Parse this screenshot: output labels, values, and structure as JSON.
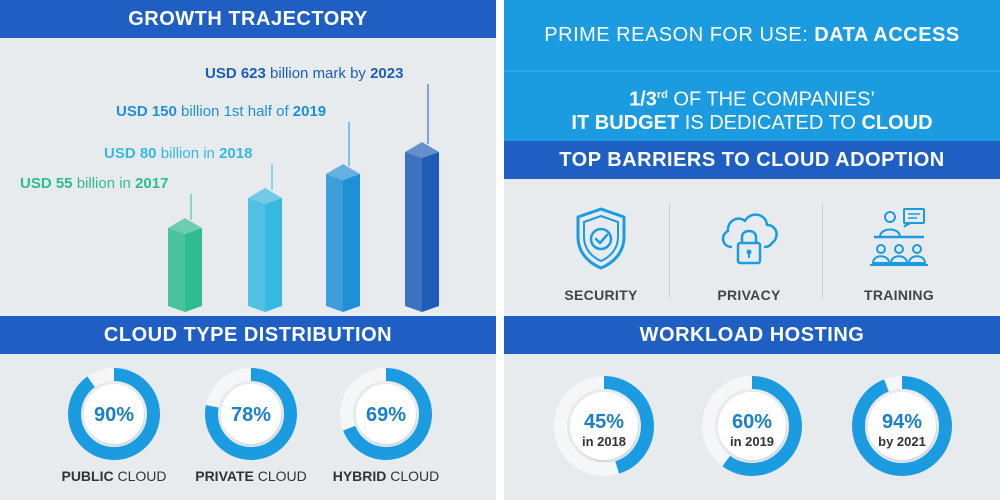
{
  "growth": {
    "title": "GROWTH TRAJECTORY",
    "labels": [
      {
        "pre": "USD 55",
        "mid": " billion in ",
        "post": "2017"
      },
      {
        "pre": "USD 80",
        "mid": " billion in ",
        "post": "2018"
      },
      {
        "pre": "USD 150",
        "mid": " billion 1st half of ",
        "post": "2019"
      },
      {
        "pre": "USD 623",
        "mid": " billion mark by ",
        "post": "2023"
      }
    ],
    "colors": [
      "#2ebd8e",
      "#35b9e0",
      "#1e90d6",
      "#1d5db8"
    ]
  },
  "right_top": {
    "prime_prefix": "PRIME REASON FOR USE: ",
    "prime_bold": "DATA ACCESS",
    "budget_l1_frac": "1/3",
    "budget_l1_sup": "rd",
    "budget_l1_rest": " OF THE COMPANIES’",
    "budget_l2_a": "IT BUDGET",
    "budget_l2_b": " IS DEDICATED TO ",
    "budget_l2_c": "CLOUD"
  },
  "barriers": {
    "title": "TOP BARRIERS TO CLOUD ADOPTION",
    "items": [
      {
        "label": "SECURITY",
        "icon": "shield-check-icon"
      },
      {
        "label": "PRIVACY",
        "icon": "cloud-lock-icon"
      },
      {
        "label": "TRAINING",
        "icon": "classroom-icon"
      }
    ]
  },
  "distribution": {
    "title": "CLOUD TYPE DISTRIBUTION",
    "items": [
      {
        "value": 90,
        "text": "90%",
        "label_bold": "PUBLIC",
        "label_rest": " CLOUD"
      },
      {
        "value": 78,
        "text": "78%",
        "label_bold": "PRIVATE",
        "label_rest": " CLOUD"
      },
      {
        "value": 69,
        "text": "69%",
        "label_bold": "HYBRID",
        "label_rest": " CLOUD"
      }
    ]
  },
  "workload": {
    "title": "WORKLOAD HOSTING",
    "items": [
      {
        "value": 45,
        "text": "45%",
        "sub": "in 2018"
      },
      {
        "value": 60,
        "text": "60%",
        "sub": "in 2019"
      },
      {
        "value": 94,
        "text": "94%",
        "sub": "by 2021"
      }
    ]
  },
  "colors": {
    "band_dark": "#1f5fc4",
    "band_light": "#1b9be0",
    "ring": "#1b9be0",
    "donut_text": "#1b7fc9"
  }
}
